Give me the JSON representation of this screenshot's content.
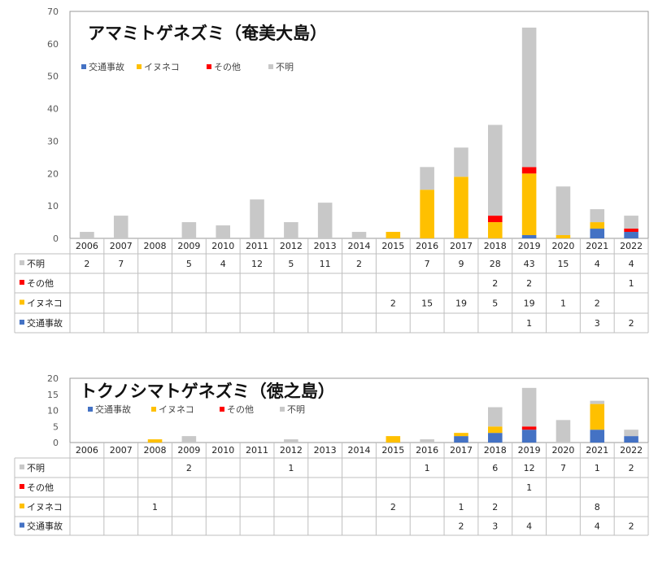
{
  "colors": {
    "交通事故": "#4472C4",
    "イヌネコ": "#FFC000",
    "その他": "#FF0000",
    "不明": "#C8C8C8"
  },
  "chart_data": [
    {
      "type": "bar",
      "stacked": true,
      "title": "アマミトゲネズミ（奄美大島）",
      "categories": [
        "2006",
        "2007",
        "2008",
        "2009",
        "2010",
        "2011",
        "2012",
        "2013",
        "2014",
        "2015",
        "2016",
        "2017",
        "2018",
        "2019",
        "2020",
        "2021",
        "2022"
      ],
      "series": [
        {
          "name": "交通事故",
          "values": [
            null,
            null,
            null,
            null,
            null,
            null,
            null,
            null,
            null,
            null,
            null,
            null,
            null,
            1,
            null,
            3,
            2
          ]
        },
        {
          "name": "イヌネコ",
          "values": [
            null,
            null,
            null,
            null,
            null,
            null,
            null,
            null,
            null,
            2,
            15,
            19,
            5,
            19,
            1,
            2,
            null
          ]
        },
        {
          "name": "その他",
          "values": [
            null,
            null,
            null,
            null,
            null,
            null,
            null,
            null,
            null,
            null,
            null,
            null,
            2,
            2,
            null,
            null,
            1
          ]
        },
        {
          "name": "不明",
          "values": [
            2,
            7,
            null,
            5,
            4,
            12,
            5,
            11,
            2,
            null,
            7,
            9,
            28,
            43,
            15,
            4,
            4
          ]
        }
      ],
      "table_order": [
        "不明",
        "その他",
        "イヌネコ",
        "交通事故"
      ],
      "ylim": [
        0,
        70
      ],
      "yticks": [
        0,
        10,
        20,
        30,
        40,
        50,
        60,
        70
      ],
      "legend": "top-left",
      "grid": false
    },
    {
      "type": "bar",
      "stacked": true,
      "title": "トクノシマトゲネズミ（徳之島）",
      "categories": [
        "2006",
        "2007",
        "2008",
        "2009",
        "2010",
        "2011",
        "2012",
        "2013",
        "2014",
        "2015",
        "2016",
        "2017",
        "2018",
        "2019",
        "2020",
        "2021",
        "2022"
      ],
      "series": [
        {
          "name": "交通事故",
          "values": [
            null,
            null,
            null,
            null,
            null,
            null,
            null,
            null,
            null,
            null,
            null,
            2,
            3,
            4,
            null,
            4,
            2
          ]
        },
        {
          "name": "イヌネコ",
          "values": [
            null,
            null,
            1,
            null,
            null,
            null,
            null,
            null,
            null,
            2,
            null,
            1,
            2,
            null,
            null,
            8,
            null
          ]
        },
        {
          "name": "その他",
          "values": [
            null,
            null,
            null,
            null,
            null,
            null,
            null,
            null,
            null,
            null,
            null,
            null,
            null,
            1,
            null,
            null,
            null
          ]
        },
        {
          "name": "不明",
          "values": [
            null,
            null,
            null,
            2,
            null,
            null,
            1,
            null,
            null,
            null,
            1,
            null,
            6,
            12,
            7,
            1,
            2
          ]
        }
      ],
      "table_order": [
        "不明",
        "その他",
        "イヌネコ",
        "交通事故"
      ],
      "ylim": [
        0,
        20
      ],
      "yticks": [
        0,
        5,
        10,
        15,
        20
      ],
      "legend": "top-left",
      "grid": false
    }
  ]
}
